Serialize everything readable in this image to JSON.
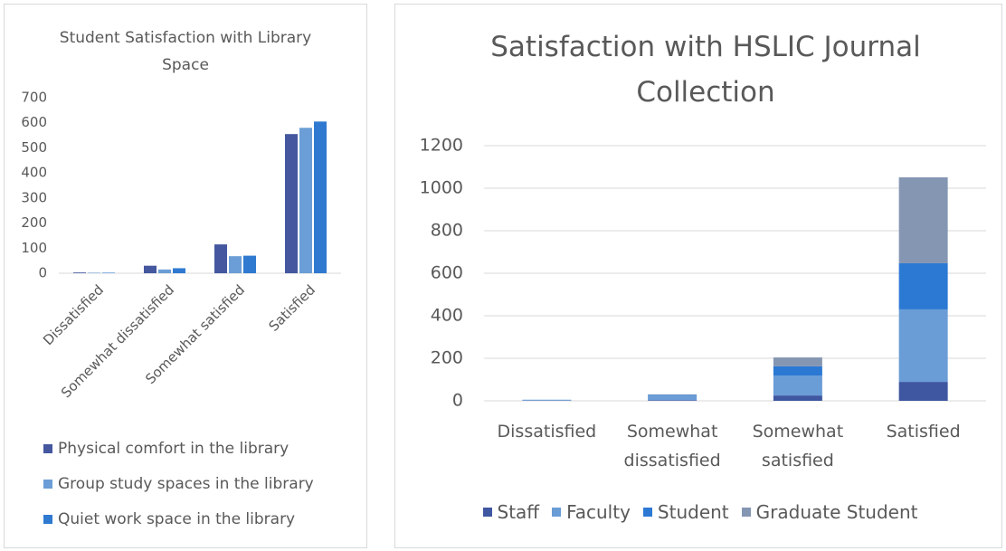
{
  "chart_data": [
    {
      "type": "bar",
      "title": "Student Satisfaction with Library Space",
      "categories": [
        "Dissatisfied",
        "Somewhat dissatisfied",
        "Somewhat satisfied",
        "Satisfied"
      ],
      "series": [
        {
          "name": "Physical comfort in the library",
          "color": "#44579f",
          "values": [
            3,
            30,
            115,
            555
          ]
        },
        {
          "name": "Group study spaces in the library",
          "color": "#6b9ed6",
          "values": [
            2,
            15,
            68,
            580
          ]
        },
        {
          "name": "Quiet work space in the library",
          "color": "#2f7ad0",
          "values": [
            2,
            20,
            70,
            605
          ]
        }
      ],
      "ylim": [
        0,
        700
      ],
      "yticks": [
        0,
        100,
        200,
        300,
        400,
        500,
        600,
        700
      ],
      "grid": false,
      "legend": "bottom"
    },
    {
      "type": "stacked_bar",
      "title": "Satisfaction with HSLIC Journal Collection",
      "categories": [
        "Dissatisfied",
        "Somewhat dissatisfied",
        "Somewhat satisfied",
        "Satisfied"
      ],
      "series": [
        {
          "name": "Staff",
          "color": "#3f56a0",
          "values": [
            1,
            3,
            25,
            89
          ]
        },
        {
          "name": "Faculty",
          "color": "#6a9cd6",
          "values": [
            3,
            22,
            94,
            341
          ]
        },
        {
          "name": "Student",
          "color": "#2c79d4",
          "values": [
            1,
            3,
            43,
            217
          ]
        },
        {
          "name": "Graduate Student",
          "color": "#8596b3",
          "values": [
            0,
            2,
            42,
            404
          ]
        }
      ],
      "ylim": [
        0,
        1200
      ],
      "yticks": [
        0,
        200,
        400,
        600,
        800,
        1000,
        1200
      ],
      "grid": true,
      "legend": "bottom"
    }
  ]
}
